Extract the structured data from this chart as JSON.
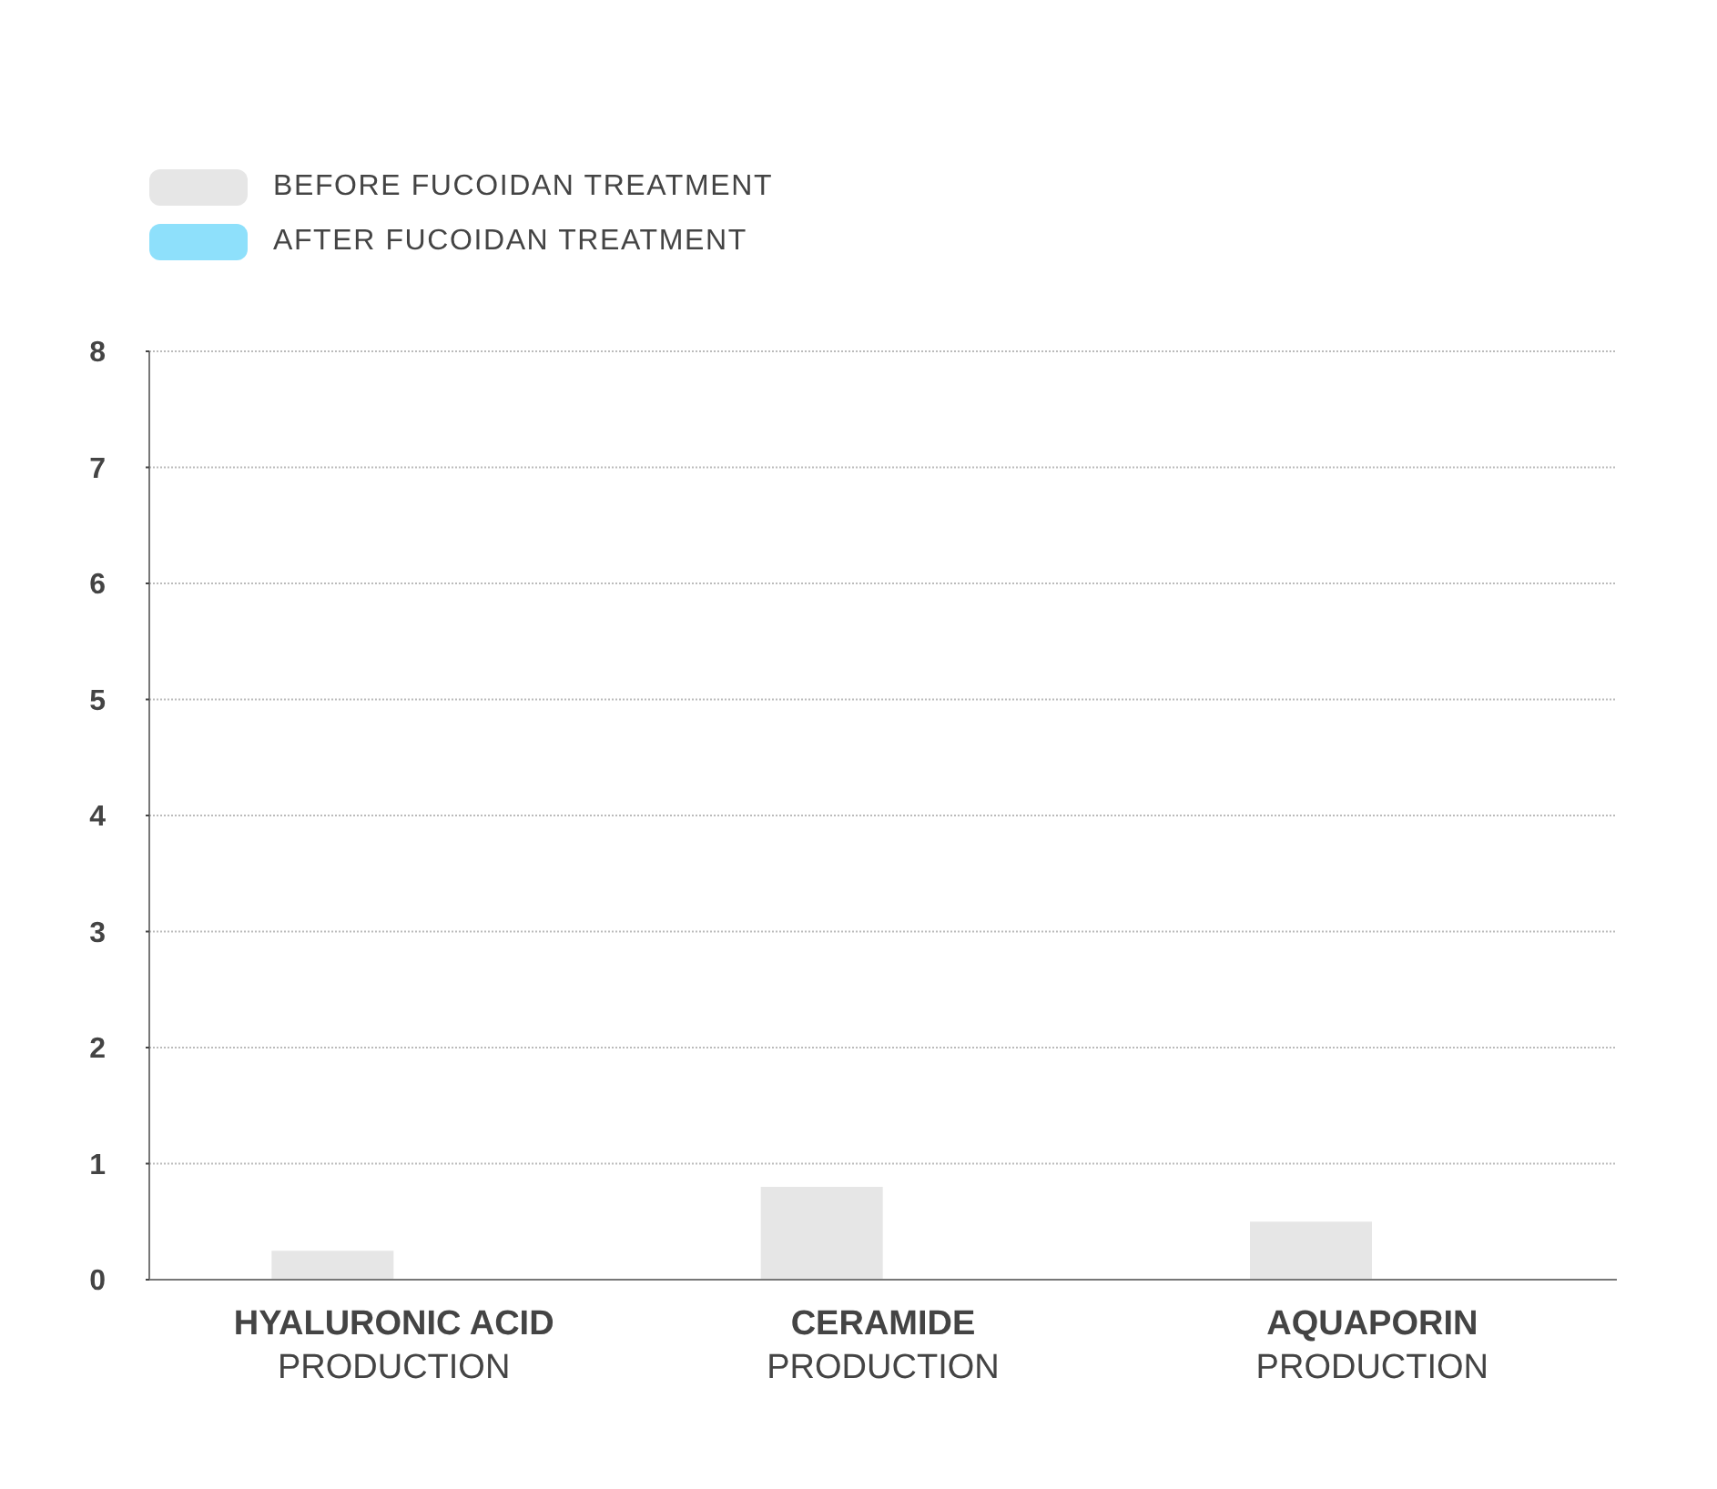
{
  "chart_data": {
    "type": "bar",
    "categories": [
      "HYALURONIC ACID\nPRODUCTION",
      "CERAMIDE\nPRODUCTION",
      "AQUAPORIN\nPRODUCTION"
    ],
    "series": [
      {
        "name": "BEFORE FUCOIDAN TREATMENT",
        "color": "#e6e6e6",
        "values": [
          0.25,
          0.8,
          0.5
        ]
      },
      {
        "name": "AFTER FUCOIDAN TREATMENT",
        "color": "#8ee0fb",
        "values": [
          null,
          null,
          null
        ]
      }
    ],
    "ylim": [
      0,
      8
    ],
    "yticks": [
      0,
      1,
      2,
      3,
      4,
      5,
      6,
      7,
      8
    ],
    "grid": "y",
    "legend": "top left"
  }
}
